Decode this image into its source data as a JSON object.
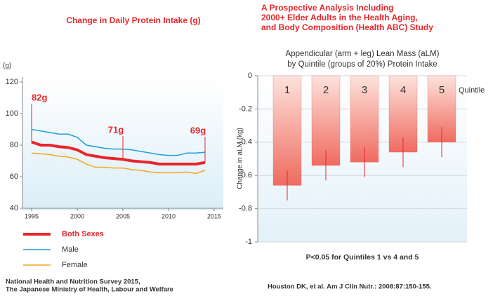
{
  "chart_data": [
    {
      "type": "line",
      "title": "Change in Daily Protein Intake  (g)",
      "ylabel": "(g)",
      "x": [
        1995,
        1996,
        1997,
        1998,
        1999,
        2000,
        2001,
        2002,
        2003,
        2004,
        2005,
        2006,
        2007,
        2008,
        2009,
        2010,
        2011,
        2012,
        2013,
        2014
      ],
      "series": [
        {
          "name": "Both Sexes",
          "color": "#e8262b",
          "values": [
            82,
            80,
            80,
            79,
            78.5,
            77,
            74,
            73,
            72,
            71.5,
            71,
            70,
            69.5,
            69,
            68,
            68,
            68,
            68,
            68,
            69
          ]
        },
        {
          "name": "Male",
          "color": "#1f9fd8",
          "values": [
            90,
            89,
            88,
            87,
            87,
            85,
            80,
            79,
            78,
            77.5,
            77.5,
            77,
            76,
            75,
            74,
            73.5,
            73.5,
            75,
            75,
            75.5
          ]
        },
        {
          "name": "Female",
          "color": "#f5a623",
          "values": [
            75,
            74.5,
            74,
            73,
            72.5,
            71,
            68,
            66,
            66,
            65.5,
            65.5,
            64.5,
            64,
            63,
            62.5,
            62.5,
            62.5,
            63,
            62,
            64
          ]
        }
      ],
      "annotations": [
        {
          "text": "82g",
          "x": 1995,
          "y": 82
        },
        {
          "text": "71g",
          "x": 2005,
          "y": 71
        },
        {
          "text": "69g",
          "x": 2014,
          "y": 69
        }
      ],
      "xlim": [
        1994,
        2016
      ],
      "xticks": [
        1995,
        2000,
        2005,
        2010,
        2015
      ],
      "ylim": [
        40,
        120
      ],
      "yticks": [
        40,
        60,
        80,
        100,
        120
      ],
      "source": [
        "National Health and Nutrition Survey 2015,",
        "The Japanese Ministry of Health, Labour and Welfare"
      ]
    },
    {
      "type": "bar",
      "title": [
        "A Prospective Analysis Including",
        "2000+ Elder Adults in the Health Aging,",
        "and Body Composition (Health ABC) Study"
      ],
      "subtitle": [
        "Appendicular (arm + leg) Lean Mass (aLM)",
        "by Quintile (groups of 20%) Protein Intake"
      ],
      "ylabel": "Change in aLM (kg)",
      "xlabel": "Quintile",
      "categories": [
        "1",
        "2",
        "3",
        "4",
        "5"
      ],
      "values": [
        -0.66,
        -0.54,
        -0.52,
        -0.46,
        -0.4
      ],
      "errors": [
        0.09,
        0.09,
        0.09,
        0.09,
        0.09
      ],
      "color": "#ee5a52",
      "ylim": [
        -1,
        0
      ],
      "yticks": [
        0,
        -0.2,
        -0.4,
        -0.6,
        -0.8,
        -1
      ],
      "grid": true,
      "note": "P<0.05 for Quintiles 1 vs 4 and 5",
      "source": "Houston DK, et al. Am J Clin Nutr.: 2008:87:150-155."
    }
  ]
}
